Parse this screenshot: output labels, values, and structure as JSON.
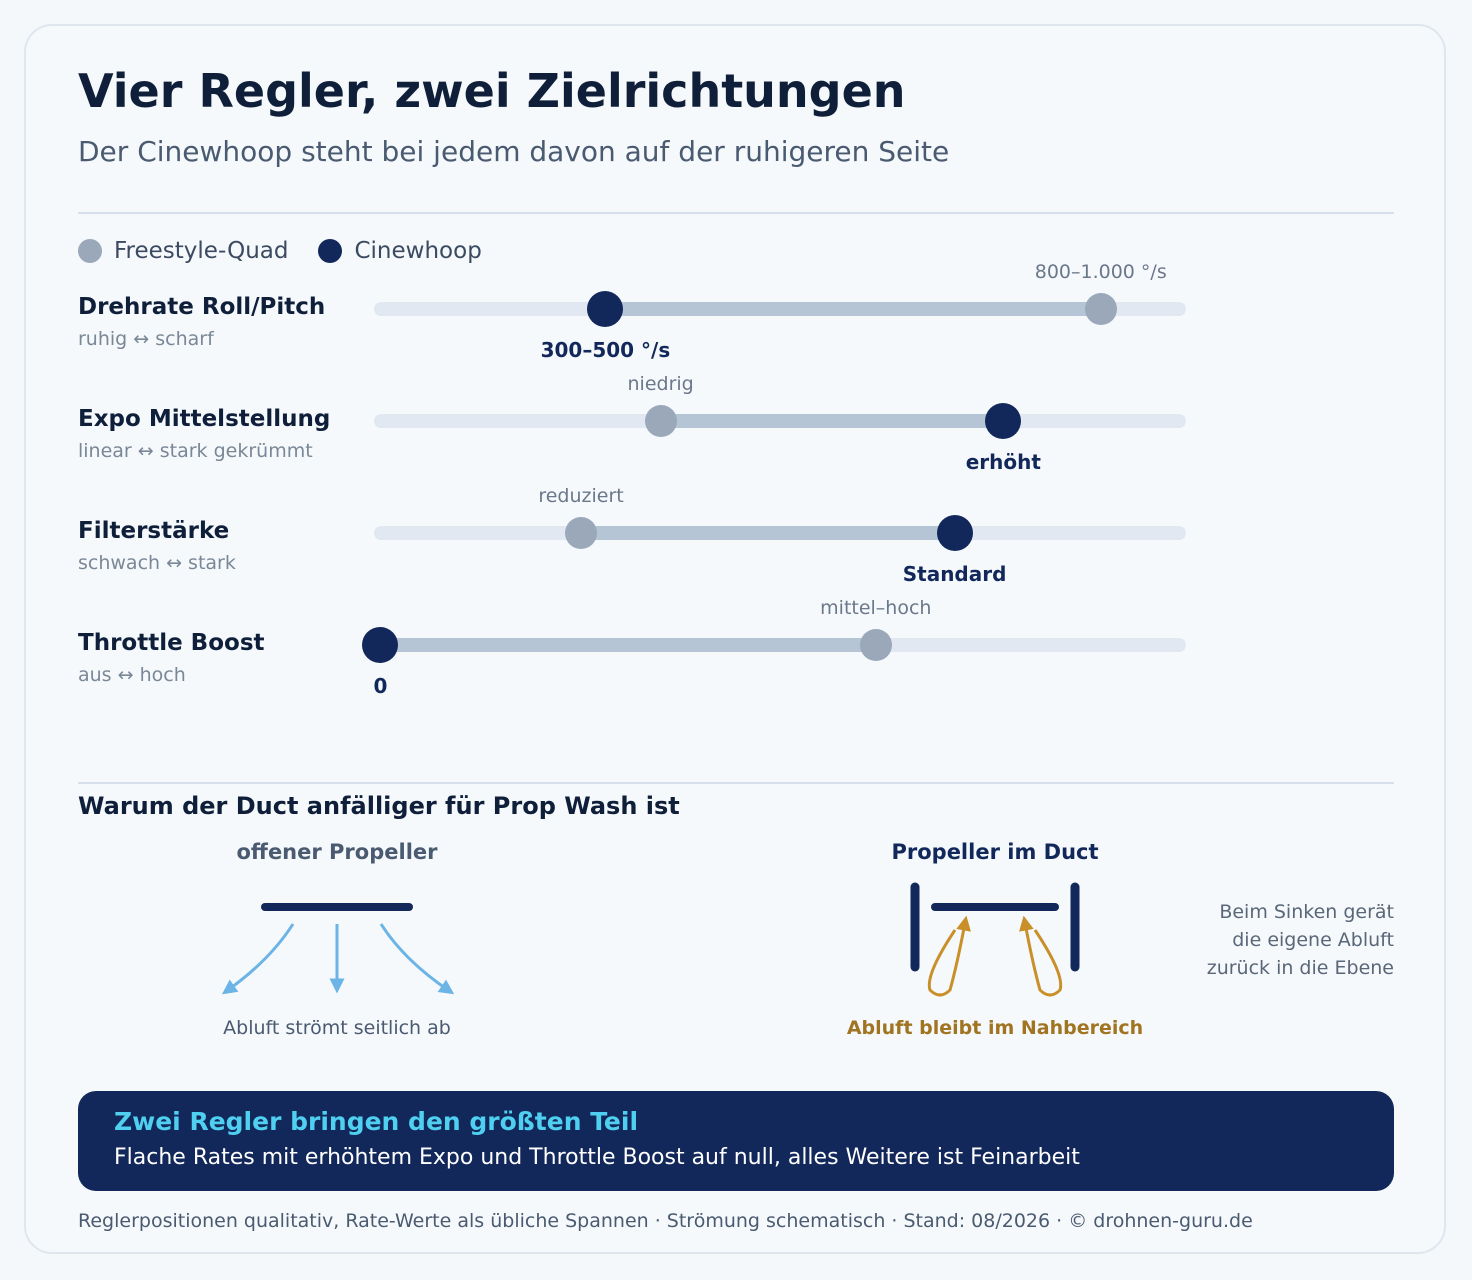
{
  "header": {
    "title": "Vier Regler, zwei Zielrichtungen",
    "subtitle": "Der Cinewhoop steht bei jedem davon auf der ruhigeren Seite"
  },
  "legend": {
    "freestyle": "Freestyle-Quad",
    "cinewhoop": "Cinewhoop"
  },
  "colors": {
    "cinewhoop": "#13285a",
    "freestyle": "#9aa8b9",
    "accent_blue": "#6cb4e6",
    "accent_gold": "#c98f28",
    "banner_heading": "#4fd0f0"
  },
  "sliders": [
    {
      "title": "Drehrate Roll/Pitch",
      "scale": "ruhig ↔ scharf",
      "cinewhoop_pos": 0.285,
      "freestyle_pos": 0.895,
      "cinewhoop_label": "300–500 °/s",
      "freestyle_label": "800–1.000 °/s"
    },
    {
      "title": "Expo Mittelstellung",
      "scale": "linear ↔ stark gekrümmt",
      "cinewhoop_pos": 0.775,
      "freestyle_pos": 0.353,
      "cinewhoop_label": "erhöht",
      "freestyle_label": "niedrig"
    },
    {
      "title": "Filterstärke",
      "scale": "schwach ↔ stark",
      "cinewhoop_pos": 0.715,
      "freestyle_pos": 0.255,
      "cinewhoop_label": "Standard",
      "freestyle_label": "reduziert"
    },
    {
      "title": "Throttle Boost",
      "scale": "aus ↔ hoch",
      "cinewhoop_pos": 0.008,
      "freestyle_pos": 0.618,
      "cinewhoop_label": "0",
      "freestyle_label": "mittel–hoch"
    }
  ],
  "propwash": {
    "title": "Warum der Duct anfälliger für Prop Wash ist",
    "open": {
      "title": "offener Propeller",
      "caption": "Abluft strömt seitlich ab"
    },
    "duct": {
      "title": "Propeller im Duct",
      "caption": "Abluft bleibt im Nahbereich"
    },
    "note": [
      "Beim Sinken gerät",
      "die eigene Abluft",
      "zurück in die Ebene"
    ]
  },
  "banner": {
    "heading": "Zwei Regler bringen den größten Teil",
    "text": "Flache Rates mit erhöhtem Expo und Throttle Boost auf null, alles Weitere ist Feinarbeit"
  },
  "footer": "Reglerpositionen qualitativ, Rate-Werte als übliche Spannen · Strömung schematisch · Stand: 08/2026 · © drohnen-guru.de"
}
